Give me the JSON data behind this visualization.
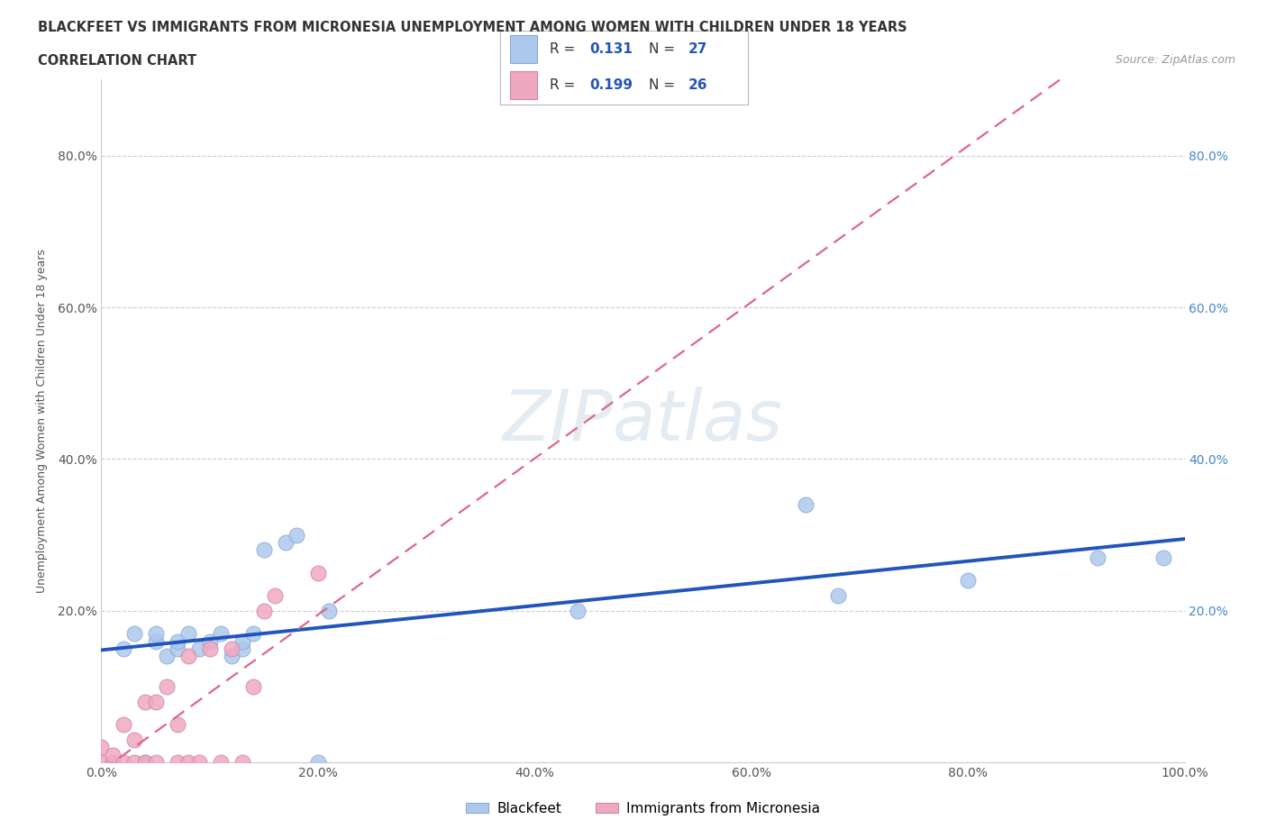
{
  "title_line1": "BLACKFEET VS IMMIGRANTS FROM MICRONESIA UNEMPLOYMENT AMONG WOMEN WITH CHILDREN UNDER 18 YEARS",
  "title_line2": "CORRELATION CHART",
  "source": "Source: ZipAtlas.com",
  "ylabel": "Unemployment Among Women with Children Under 18 years",
  "watermark": "ZIPatlas",
  "R1": "0.131",
  "N1": "27",
  "R2": "0.199",
  "N2": "26",
  "blackfeet_color": "#adc8ed",
  "micronesia_color": "#f0a8c0",
  "trendline_blue": "#2255bb",
  "trendline_pink": "#dd6688",
  "blackfeet_x": [
    2,
    3,
    4,
    5,
    5,
    6,
    7,
    7,
    8,
    9,
    10,
    11,
    12,
    13,
    13,
    14,
    15,
    17,
    18,
    20,
    21,
    44,
    65,
    68,
    80,
    92,
    98
  ],
  "blackfeet_y": [
    15,
    17,
    0,
    16,
    17,
    14,
    15,
    16,
    17,
    15,
    16,
    17,
    14,
    15,
    16,
    17,
    28,
    29,
    30,
    0,
    20,
    20,
    34,
    22,
    24,
    27,
    27
  ],
  "micronesia_x": [
    0,
    0,
    1,
    1,
    2,
    2,
    3,
    3,
    4,
    4,
    5,
    5,
    6,
    7,
    7,
    8,
    8,
    9,
    10,
    11,
    12,
    13,
    14,
    15,
    16,
    20
  ],
  "micronesia_y": [
    0,
    2,
    0,
    1,
    0,
    5,
    0,
    3,
    0,
    8,
    0,
    8,
    10,
    0,
    5,
    0,
    14,
    0,
    15,
    0,
    15,
    0,
    10,
    20,
    22,
    25
  ],
  "xlim": [
    0,
    100
  ],
  "ylim": [
    0,
    90
  ],
  "xticks": [
    0,
    20,
    40,
    60,
    80,
    100
  ],
  "xticklabels": [
    "0.0%",
    "20.0%",
    "40.0%",
    "60.0%",
    "80.0%",
    "100.0%"
  ],
  "yticks": [
    0,
    20,
    40,
    60,
    80
  ],
  "yticklabels_left": [
    "",
    "20.0%",
    "40.0%",
    "60.0%",
    "80.0%"
  ],
  "yticklabels_right": [
    "",
    "20.0%",
    "40.0%",
    "60.0%",
    "80.0%"
  ],
  "grid_color": "#cccccc",
  "background_color": "#ffffff",
  "legend_label1": "Blackfeet",
  "legend_label2": "Immigrants from Micronesia"
}
